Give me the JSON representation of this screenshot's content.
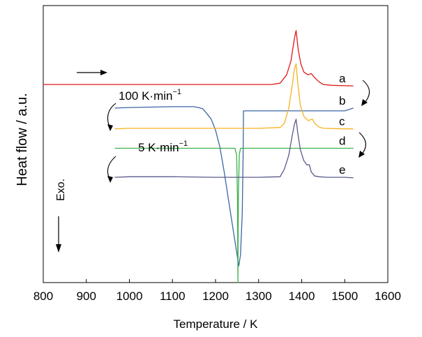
{
  "chart_data": {
    "type": "line",
    "xlabel": "Temperature / K",
    "ylabel": "Heat flow / a.u.",
    "xlim": [
      800,
      1600
    ],
    "ylim": [
      0,
      10
    ],
    "xticks": [
      800,
      900,
      1000,
      1100,
      1200,
      1300,
      1400,
      1500,
      1600
    ],
    "grid": false,
    "annotations": {
      "rate_high": "100 K·min",
      "rate_low": "5 K·min",
      "rate_sup": "−1",
      "exo": "Exo."
    },
    "series": [
      {
        "label": "a",
        "color": "#e01a1a",
        "x": [
          800,
          1200,
          1330,
          1350,
          1365,
          1375,
          1383,
          1387,
          1392,
          1398,
          1405,
          1415,
          1422,
          1430,
          1440,
          1450,
          1470,
          1520
        ],
        "y": [
          7.15,
          7.15,
          7.15,
          7.2,
          7.5,
          8.0,
          8.8,
          9.1,
          8.4,
          7.9,
          7.6,
          7.5,
          7.55,
          7.4,
          7.25,
          7.15,
          7.12,
          7.1
        ]
      },
      {
        "label": "b",
        "color": "#3a66a5",
        "x": [
          966,
          1000,
          1100,
          1150,
          1160,
          1170,
          1180,
          1190,
          1200,
          1210,
          1220,
          1230,
          1240,
          1250,
          1254,
          1258,
          1262,
          1264,
          1265,
          1300,
          1400,
          1500,
          1520
        ],
        "y": [
          6.3,
          6.32,
          6.35,
          6.35,
          6.32,
          6.28,
          6.1,
          5.9,
          5.5,
          4.9,
          4.0,
          3.0,
          2.0,
          1.0,
          0.6,
          1.0,
          2.5,
          4.5,
          6.2,
          6.2,
          6.2,
          6.2,
          6.3
        ]
      },
      {
        "label": "c",
        "color": "#f7b21d",
        "x": [
          966,
          1000,
          1200,
          1300,
          1350,
          1360,
          1370,
          1378,
          1383,
          1387,
          1391,
          1397,
          1405,
          1415,
          1425,
          1430,
          1440,
          1450,
          1500,
          1520
        ],
        "y": [
          5.55,
          5.57,
          5.57,
          5.57,
          5.6,
          5.75,
          6.3,
          7.1,
          7.7,
          7.9,
          7.2,
          6.4,
          6.0,
          5.85,
          5.9,
          5.75,
          5.62,
          5.57,
          5.55,
          5.55
        ]
      },
      {
        "label": "d",
        "color": "#3cb04a",
        "x": [
          966,
          1000,
          1200,
          1245,
          1249,
          1251,
          1252,
          1253,
          1255,
          1258,
          1300,
          1400,
          1500,
          1520
        ],
        "y": [
          4.85,
          4.85,
          4.85,
          4.85,
          4.6,
          3.0,
          0.0,
          3.0,
          4.6,
          4.85,
          4.85,
          4.85,
          4.85,
          4.85
        ]
      },
      {
        "label": "e",
        "color": "#5a5a8c",
        "x": [
          966,
          1000,
          1100,
          1200,
          1300,
          1350,
          1360,
          1370,
          1378,
          1383,
          1387,
          1391,
          1397,
          1405,
          1412,
          1418,
          1422,
          1430,
          1440,
          1460,
          1500,
          1520
        ],
        "y": [
          3.8,
          3.82,
          3.82,
          3.8,
          3.8,
          3.82,
          4.1,
          4.6,
          5.3,
          5.7,
          5.9,
          5.4,
          4.8,
          4.4,
          4.25,
          4.25,
          4.0,
          3.85,
          3.82,
          3.8,
          3.8,
          3.78
        ]
      }
    ]
  }
}
